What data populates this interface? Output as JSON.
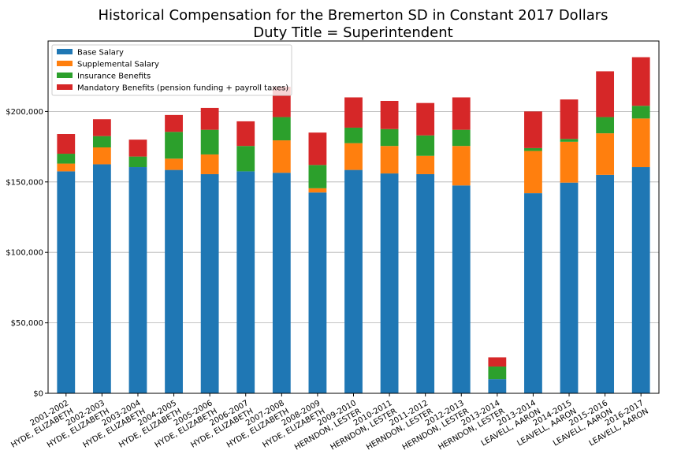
{
  "chart_data": {
    "type": "bar",
    "stacked": true,
    "title": "Historical Compensation for the Bremerton SD in Constant 2017 Dollars",
    "subtitle": "Duty Title = Superintendent",
    "xlabel": "",
    "ylabel": "",
    "ylim": [
      0,
      250000
    ],
    "yticks": [
      0,
      50000,
      100000,
      150000,
      200000
    ],
    "ytick_labels": [
      "$0",
      "$50,000",
      "$100,000",
      "$150,000",
      "$200,000"
    ],
    "grid": "horizontal",
    "legend_position": "top-left",
    "categories": [
      [
        "2001-2002",
        "HYDE, ELIZABETH"
      ],
      [
        "2002-2003",
        "HYDE, ELIZABETH"
      ],
      [
        "2003-2004",
        "HYDE, ELIZABETH"
      ],
      [
        "2004-2005",
        "HYDE, ELIZABETH"
      ],
      [
        "2005-2006",
        "HYDE, ELIZABETH"
      ],
      [
        "2006-2007",
        "HYDE, ELIZABETH"
      ],
      [
        "2007-2008",
        "HYDE, ELIZABETH"
      ],
      [
        "2008-2009",
        "HYDE, ELIZABETH"
      ],
      [
        "2009-2010",
        "HERNDON, LESTER"
      ],
      [
        "2010-2011",
        "HERNDON, LESTER"
      ],
      [
        "2011-2012",
        "HERNDON, LESTER"
      ],
      [
        "2012-2013",
        "HERNDON, LESTER"
      ],
      [
        "2013-2014",
        "HERNDON, LESTER"
      ],
      [
        "2013-2014",
        "LEAVELL, AARON"
      ],
      [
        "2014-2015",
        "LEAVELL, AARON"
      ],
      [
        "2015-2016",
        "LEAVELL, AARON"
      ],
      [
        "2016-2017",
        "LEAVELL, AARON"
      ]
    ],
    "series": [
      {
        "name": "Base Salary",
        "color": "#1f77b4",
        "values": [
          157500,
          162500,
          160500,
          158500,
          155500,
          157500,
          156500,
          142500,
          158500,
          156000,
          155500,
          147500,
          10000,
          142000,
          149500,
          155000,
          160500
        ]
      },
      {
        "name": "Supplemental Salary",
        "color": "#ff7f0e",
        "values": [
          5500,
          12000,
          0,
          8000,
          14000,
          0,
          23000,
          3000,
          19000,
          19500,
          13000,
          28000,
          0,
          30000,
          29000,
          29500,
          34500
        ]
      },
      {
        "name": "Insurance Benefits",
        "color": "#2ca02c",
        "values": [
          7000,
          8000,
          7500,
          19000,
          17500,
          18000,
          16500,
          16500,
          11000,
          12000,
          14500,
          11500,
          9000,
          2000,
          2000,
          11500,
          9000
        ]
      },
      {
        "name": "Mandatory Benefits (pension funding + payroll taxes)",
        "color": "#d62728",
        "values": [
          14000,
          12000,
          12000,
          12000,
          15500,
          17500,
          21500,
          23000,
          21500,
          20000,
          23000,
          23000,
          6500,
          26000,
          28000,
          32500,
          34500
        ]
      }
    ]
  }
}
